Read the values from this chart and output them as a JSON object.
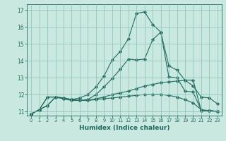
{
  "xlabel": "Humidex (Indice chaleur)",
  "ylabel": "",
  "background_color": "#c9e8e0",
  "grid_color": "#88bfb8",
  "line_color": "#1e6b5e",
  "xlim": [
    -0.5,
    23.5
  ],
  "ylim": [
    10.75,
    17.35
  ],
  "yticks": [
    11,
    12,
    13,
    14,
    15,
    16,
    17
  ],
  "xticks": [
    0,
    1,
    2,
    3,
    4,
    5,
    6,
    7,
    8,
    9,
    10,
    11,
    12,
    13,
    14,
    15,
    16,
    17,
    18,
    19,
    20,
    21,
    22,
    23
  ],
  "series": [
    [
      10.85,
      11.1,
      11.35,
      11.85,
      11.8,
      11.7,
      11.65,
      11.65,
      11.7,
      11.75,
      11.8,
      11.85,
      11.9,
      11.95,
      12.0,
      12.0,
      12.0,
      11.95,
      11.85,
      11.7,
      11.5,
      11.1,
      11.05,
      11.0
    ],
    [
      10.85,
      11.1,
      11.35,
      11.85,
      11.8,
      11.7,
      11.65,
      11.65,
      11.75,
      11.85,
      12.0,
      12.1,
      12.2,
      12.35,
      12.5,
      12.6,
      12.7,
      12.75,
      12.8,
      12.85,
      12.85,
      11.05,
      11.05,
      11.0
    ],
    [
      10.85,
      11.1,
      11.85,
      11.85,
      11.75,
      11.65,
      11.65,
      11.7,
      12.0,
      12.45,
      12.95,
      13.5,
      14.1,
      14.05,
      14.1,
      15.25,
      15.7,
      13.05,
      13.0,
      12.2,
      12.15,
      11.05,
      11.05,
      11.0
    ],
    [
      10.85,
      11.1,
      11.85,
      11.85,
      11.75,
      11.7,
      11.8,
      12.0,
      12.45,
      13.1,
      14.05,
      14.55,
      15.3,
      16.8,
      16.9,
      16.15,
      15.7,
      13.7,
      13.45,
      12.85,
      12.5,
      11.85,
      11.8,
      11.45
    ]
  ]
}
